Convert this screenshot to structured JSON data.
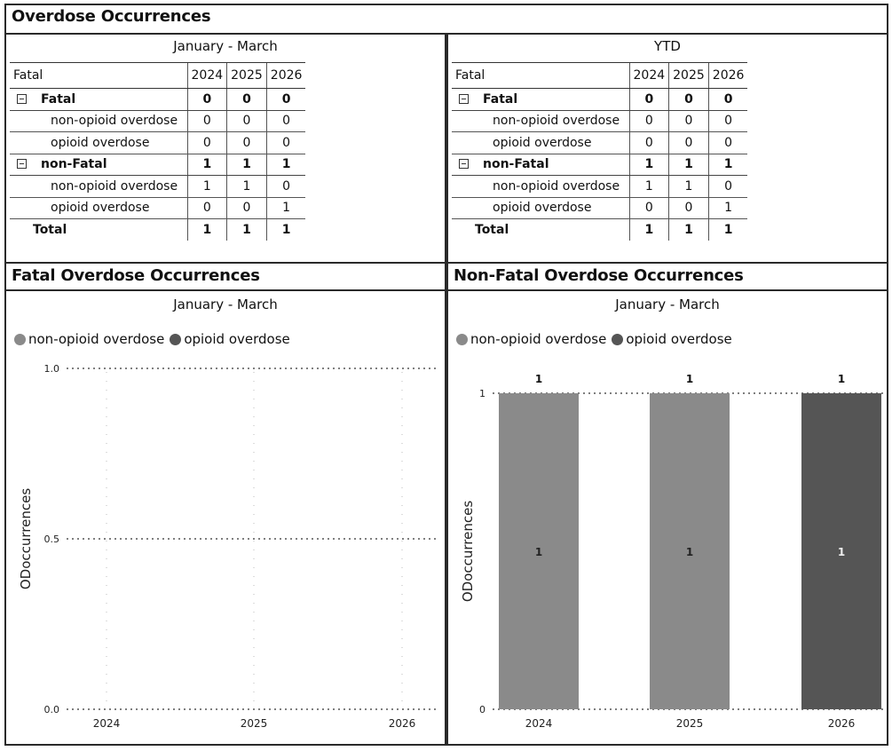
{
  "header": {
    "title": "Overdose Occurrences"
  },
  "colors": {
    "non_opioid": "#8a8a8a",
    "opioid": "#555555"
  },
  "tables": [
    {
      "subtitle": "January - March",
      "column_header_label": "Fatal",
      "years": [
        "2024",
        "2025",
        "2026"
      ],
      "groups": [
        {
          "label": "Fatal",
          "totals": [
            "0",
            "0",
            "0"
          ],
          "rows": [
            {
              "label": "non-opioid overdose",
              "values": [
                "0",
                "0",
                "0"
              ]
            },
            {
              "label": "opioid overdose",
              "values": [
                "0",
                "0",
                "0"
              ]
            }
          ]
        },
        {
          "label": "non-Fatal",
          "totals": [
            "1",
            "1",
            "1"
          ],
          "rows": [
            {
              "label": "non-opioid overdose",
              "values": [
                "1",
                "1",
                "0"
              ]
            },
            {
              "label": "opioid overdose",
              "values": [
                "0",
                "0",
                "1"
              ]
            }
          ]
        }
      ],
      "total": {
        "label": "Total",
        "values": [
          "1",
          "1",
          "1"
        ]
      }
    },
    {
      "subtitle": "YTD",
      "column_header_label": "Fatal",
      "years": [
        "2024",
        "2025",
        "2026"
      ],
      "groups": [
        {
          "label": "Fatal",
          "totals": [
            "0",
            "0",
            "0"
          ],
          "rows": [
            {
              "label": "non-opioid overdose",
              "values": [
                "0",
                "0",
                "0"
              ]
            },
            {
              "label": "opioid overdose",
              "values": [
                "0",
                "0",
                "0"
              ]
            }
          ]
        },
        {
          "label": "non-Fatal",
          "totals": [
            "1",
            "1",
            "1"
          ],
          "rows": [
            {
              "label": "non-opioid overdose",
              "values": [
                "1",
                "1",
                "0"
              ]
            },
            {
              "label": "opioid overdose",
              "values": [
                "0",
                "0",
                "1"
              ]
            }
          ]
        }
      ],
      "total": {
        "label": "Total",
        "values": [
          "1",
          "1",
          "1"
        ]
      }
    }
  ],
  "chart_data": [
    {
      "type": "bar",
      "title": "Fatal Overdose Occurrences",
      "subtitle": "January - March",
      "categories": [
        "2024",
        "2025",
        "2026"
      ],
      "series": [
        {
          "name": "non-opioid overdose",
          "values": [
            0,
            0,
            0
          ]
        },
        {
          "name": "opioid overdose",
          "values": [
            0,
            0,
            0
          ]
        }
      ],
      "ylabel": "ODoccurrences",
      "ylim": [
        0,
        1
      ],
      "yticks": [
        "0.0",
        "0.5",
        "1.0"
      ],
      "grid": true,
      "legend": "top-left"
    },
    {
      "type": "bar",
      "stacked": true,
      "title": "Non-Fatal Overdose Occurrences",
      "subtitle": "January - March",
      "categories": [
        "2024",
        "2025",
        "2026"
      ],
      "series": [
        {
          "name": "non-opioid overdose",
          "values": [
            1,
            1,
            0
          ]
        },
        {
          "name": "opioid overdose",
          "values": [
            0,
            0,
            1
          ]
        }
      ],
      "totals": [
        1,
        1,
        1
      ],
      "ylabel": "ODoccurrences",
      "ylim": [
        0,
        1
      ],
      "yticks": [
        "0",
        "1"
      ],
      "grid": true,
      "legend": "top-left"
    }
  ]
}
